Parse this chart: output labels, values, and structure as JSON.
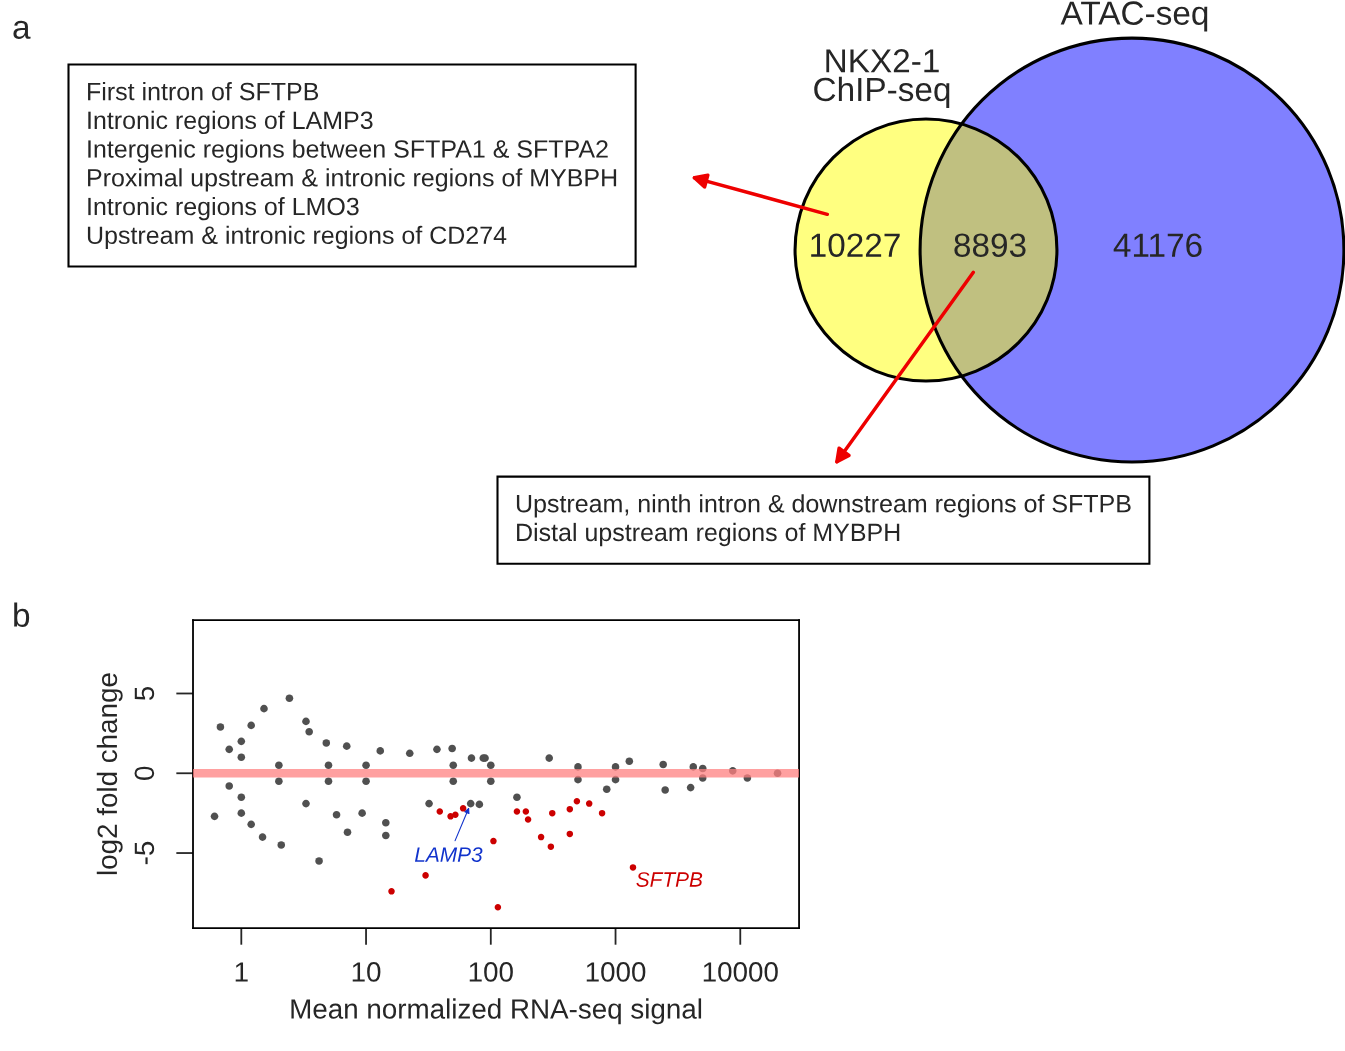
{
  "chart_data": [
    {
      "type": "other",
      "title": "a",
      "categories": [
        null,
        null,
        null
      ],
      "values": [
        10227,
        8893,
        41176
      ],
      "colors": [
        "#ffff80",
        "#c0c080",
        "#8080ff"
      ],
      "data_labels": true,
      "annotations": [
        "NKX2-1\nChIP-seq",
        "ATAC-seq",
        "First intron of SFTPB\nIntronic regions of LAMP3\nIntergenic regions between SFTPA1 & SFTPA2\nProximal upstream & intronic regions of MYBPH\nIntronic regions of LMO3\nUpstream & intronic regions of CD274",
        "Upstream, ninth intron & downstream regions of SFTPB\nDistal upstream regions of MYBPH"
      ]
    },
    {
      "type": "scatter",
      "title": "b",
      "xlabel": "Mean normalized RNA-seq signal",
      "ylabel": "log2 fold change",
      "log": "x",
      "xlim": [
        0.41,
        29600
      ],
      "ylim": [
        -9.7,
        9.6
      ],
      "xticks": [
        1,
        10,
        100,
        1000,
        10000
      ],
      "yticks": [
        -5,
        0,
        5
      ],
      "grid": false,
      "legend": false,
      "marker": "circle",
      "series": [
        {
          "color": "#505050",
          "x": [
            0.68,
            1.52,
            2.43,
            0.61,
            1.48,
            2.09,
            4.2,
            3.3,
            3.5,
            4.8,
            7.0,
            13,
            22.4,
            37,
            49,
            70,
            90,
            87,
            294,
            1290,
            2410,
            4200,
            8700,
            19900,
            3.3,
            5.8,
            7.1,
            14.4,
            14.4,
            9.3,
            32,
            81,
            162,
            850,
            2500,
            4000,
            11400,
            1.0,
            1.0,
            1.2,
            0.8,
            1.0,
            1.0,
            1.2,
            0.8,
            2,
            5,
            10,
            50,
            100,
            500,
            1000,
            5000,
            2,
            5,
            10,
            50,
            100,
            500,
            1000,
            5000,
            69
          ],
          "values": [
            2.9,
            4.05,
            4.7,
            -2.7,
            -4.0,
            -4.5,
            -5.5,
            3.25,
            2.6,
            1.9,
            1.7,
            1.4,
            1.25,
            1.5,
            1.55,
            0.95,
            0.95,
            0.95,
            0.95,
            0.75,
            0.55,
            0.4,
            0.15,
            0.0,
            -1.9,
            -2.6,
            -3.7,
            -3.1,
            -3.9,
            -2.5,
            -1.9,
            -1.95,
            -1.5,
            -1.0,
            -1.05,
            -0.9,
            -0.3,
            2.0,
            1.0,
            3.0,
            1.5,
            -1.5,
            -2.5,
            -3.2,
            -0.8,
            0.5,
            0.5,
            0.5,
            0.5,
            0.5,
            0.4,
            0.4,
            0.3,
            -0.5,
            -0.5,
            -0.5,
            -0.5,
            -0.5,
            -0.4,
            -0.4,
            -0.3,
            -1.9
          ]
        },
        {
          "color": "#cc0000",
          "x": [
            39,
            47.6,
            52,
            60,
            105,
            30,
            16,
            114,
            162,
            191,
            199,
            311,
            430,
            490,
            615,
            780,
            253,
            303,
            430,
            1380
          ],
          "values": [
            -2.4,
            -2.7,
            -2.6,
            -2.2,
            -4.25,
            -6.4,
            -7.4,
            -8.4,
            -2.4,
            -2.4,
            -2.9,
            -2.5,
            -2.25,
            -1.75,
            -1.9,
            -2.5,
            -4.0,
            -4.6,
            -3.8,
            -5.9
          ]
        }
      ],
      "ref_lines": [
        {
          "axis": "y",
          "value": 0,
          "color": "#ff8080"
        }
      ],
      "annotations": [
        {
          "text": "LAMP3",
          "x": 69,
          "y": -1.9
        },
        {
          "text": "SFTPB",
          "x": 1380,
          "y": -5.9
        }
      ]
    }
  ]
}
